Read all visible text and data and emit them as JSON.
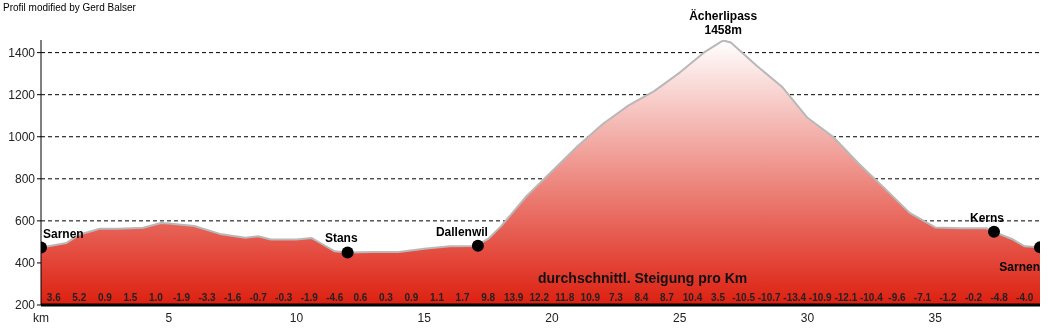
{
  "chart_data": {
    "type": "area",
    "title": "Profil modified by Gerd Balser",
    "x": [
      0,
      1,
      1.5,
      2,
      2.3,
      3,
      4,
      4.7,
      5,
      6,
      7,
      8,
      8.5,
      9,
      10,
      10.6,
      11,
      11.5,
      12,
      13,
      14,
      15,
      16,
      17,
      17.5,
      18,
      19,
      20,
      21,
      22,
      23,
      24,
      25,
      26,
      26.7,
      27,
      28,
      29,
      30,
      31,
      32,
      33,
      34,
      35,
      36,
      37,
      37.3,
      38,
      38.5,
      39.1
    ],
    "series": [
      {
        "color": "#dd2010",
        "values": [
          473,
          495,
          535,
          552,
          563,
          563,
          567,
          590,
          587,
          576,
          538,
          520,
          527,
          511,
          511,
          518,
          490,
          455,
          450,
          452,
          452,
          467,
          479,
          480,
          514,
          574,
          717,
          836,
          955,
          1062,
          1149,
          1217,
          1305,
          1405,
          1458,
          1448,
          1339,
          1238,
          1090,
          1000,
          873,
          757,
          638,
          569,
          565,
          565,
          548,
          514,
          479,
          474
        ]
      },
      {
        "type": "scatter",
        "marker": "circle",
        "color": "#000000",
        "x": [
          0,
          12,
          17.1,
          37.3,
          39.1
        ],
        "values": [
          473,
          450,
          482,
          548,
          474
        ]
      }
    ],
    "xlim": [
      0,
      39.1
    ],
    "xticks": [
      {
        "value": 0,
        "label": "km"
      },
      5,
      10,
      15,
      20,
      25,
      30,
      35
    ],
    "ylim": [
      200,
      1460
    ],
    "yticks": [
      200,
      400,
      600,
      800,
      1000,
      1200,
      1400
    ],
    "grid": "y",
    "annotations": [
      {
        "text": "Sarnen",
        "x": 0,
        "y": 473
      },
      {
        "text": "Stans",
        "x": 12,
        "y": 450
      },
      {
        "text": "Dallenwil",
        "x": 17.1,
        "y": 482
      },
      {
        "text": "Ächerlipass\n1458m",
        "x": 26.7,
        "y": 1458
      },
      {
        "text": "Kerns",
        "x": 37.3,
        "y": 548
      },
      {
        "text": "Sarnen",
        "x": 39.1,
        "y": 474
      },
      "durchschnittl. Steigung pro Km",
      {
        "text": "3.6",
        "x": 0.5,
        "y": 200
      },
      {
        "text": "5.2",
        "x": 1.5,
        "y": 200
      },
      {
        "text": "0.9",
        "x": 2.5,
        "y": 200
      },
      {
        "text": "1.5",
        "x": 3.5,
        "y": 200
      },
      {
        "text": "1.0",
        "x": 4.5,
        "y": 200
      },
      {
        "text": "-1.9",
        "x": 5.5,
        "y": 200
      },
      {
        "text": "-3.3",
        "x": 6.5,
        "y": 200
      },
      {
        "text": "-1.6",
        "x": 7.5,
        "y": 200
      },
      {
        "text": "-0.7",
        "x": 8.5,
        "y": 200
      },
      {
        "text": "-0.3",
        "x": 9.5,
        "y": 200
      },
      {
        "text": "-1.9",
        "x": 10.5,
        "y": 200
      },
      {
        "text": "-4.6",
        "x": 11.5,
        "y": 200
      },
      {
        "text": "0.6",
        "x": 12.5,
        "y": 200
      },
      {
        "text": "0.3",
        "x": 13.5,
        "y": 200
      },
      {
        "text": "0.9",
        "x": 14.5,
        "y": 200
      },
      {
        "text": "1.1",
        "x": 15.5,
        "y": 200
      },
      {
        "text": "1.7",
        "x": 16.5,
        "y": 200
      },
      {
        "text": "9.8",
        "x": 17.5,
        "y": 200
      },
      {
        "text": "13.9",
        "x": 18.5,
        "y": 200
      },
      {
        "text": "12.2",
        "x": 19.5,
        "y": 200
      },
      {
        "text": "11.8",
        "x": 20.5,
        "y": 200
      },
      {
        "text": "10.9",
        "x": 21.5,
        "y": 200
      },
      {
        "text": "7.3",
        "x": 22.5,
        "y": 200
      },
      {
        "text": "8.4",
        "x": 23.5,
        "y": 200
      },
      {
        "text": "8.7",
        "x": 24.5,
        "y": 200
      },
      {
        "text": "10.4",
        "x": 25.5,
        "y": 200
      },
      {
        "text": "3.5",
        "x": 26.5,
        "y": 200
      },
      {
        "text": "-10.5",
        "x": 27.5,
        "y": 200
      },
      {
        "text": "-10.7",
        "x": 28.5,
        "y": 200
      },
      {
        "text": "-13.4",
        "x": 29.5,
        "y": 200
      },
      {
        "text": "-10.9",
        "x": 30.5,
        "y": 200
      },
      {
        "text": "-12.1",
        "x": 31.5,
        "y": 200
      },
      {
        "text": "-10.4",
        "x": 32.5,
        "y": 200
      },
      {
        "text": "-9.6",
        "x": 33.5,
        "y": 200
      },
      {
        "text": "-7.1",
        "x": 34.5,
        "y": 200
      },
      {
        "text": "-1.2",
        "x": 35.5,
        "y": 200
      },
      {
        "text": "-0.2",
        "x": 36.5,
        "y": 200
      },
      {
        "text": "-4.8",
        "x": 37.5,
        "y": 200
      },
      {
        "text": "-4.0",
        "x": 38.5,
        "y": 200
      }
    ]
  }
}
